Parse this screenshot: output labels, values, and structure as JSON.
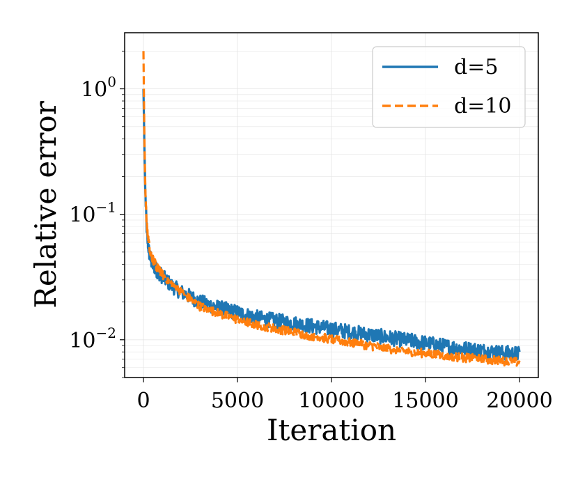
{
  "chart_data": {
    "type": "line",
    "title": "",
    "xlabel": "Iteration",
    "ylabel": "Relative error",
    "xlim": [
      -1000,
      21000
    ],
    "ylim": [
      0.005,
      2.8
    ],
    "yscale": "log",
    "grid": true,
    "legend_location": "top-right",
    "x_ticks": [
      0,
      5000,
      10000,
      15000,
      20000
    ],
    "x_tick_labels": [
      "0",
      "5000",
      "10000",
      "15000",
      "20000"
    ],
    "y_ticks": [
      0.01,
      0.1,
      1
    ],
    "y_tick_labels": [
      {
        "base": "10",
        "exp": "−2"
      },
      {
        "base": "10",
        "exp": "−1"
      },
      {
        "base": "10",
        "exp": "0"
      }
    ],
    "series": [
      {
        "name": "d=5",
        "color": "#1f77b4",
        "style": "solid",
        "noise": 0.06,
        "x": [
          0,
          50,
          100,
          150,
          200,
          300,
          400,
          500,
          700,
          1000,
          1500,
          2000,
          2500,
          3000,
          4000,
          5000,
          6000,
          7000,
          8000,
          9000,
          10000,
          11000,
          12000,
          13000,
          14000,
          15000,
          16000,
          17000,
          18000,
          19000,
          20000
        ],
        "y": [
          1.0,
          0.35,
          0.15,
          0.09,
          0.065,
          0.05,
          0.043,
          0.04,
          0.036,
          0.032,
          0.027,
          0.024,
          0.022,
          0.02,
          0.018,
          0.0165,
          0.015,
          0.0142,
          0.0135,
          0.0128,
          0.0122,
          0.0115,
          0.011,
          0.0104,
          0.0099,
          0.0094,
          0.0089,
          0.0085,
          0.0082,
          0.0079,
          0.0077
        ]
      },
      {
        "name": "d=10",
        "color": "#ff7f0e",
        "style": "dashed",
        "noise": 0.035,
        "x": [
          0,
          50,
          100,
          150,
          200,
          300,
          400,
          500,
          700,
          1000,
          1500,
          2000,
          2500,
          3000,
          4000,
          5000,
          6000,
          7000,
          8000,
          9000,
          10000,
          11000,
          12000,
          13000,
          14000,
          15000,
          16000,
          17000,
          18000,
          19000,
          20000
        ],
        "y": [
          2.0,
          0.4,
          0.16,
          0.1,
          0.075,
          0.057,
          0.048,
          0.044,
          0.038,
          0.033,
          0.028,
          0.024,
          0.021,
          0.0185,
          0.0162,
          0.0145,
          0.0132,
          0.0123,
          0.0115,
          0.0107,
          0.0101,
          0.0095,
          0.009,
          0.0085,
          0.0081,
          0.0078,
          0.0075,
          0.0072,
          0.007,
          0.0068,
          0.0066
        ]
      }
    ]
  }
}
